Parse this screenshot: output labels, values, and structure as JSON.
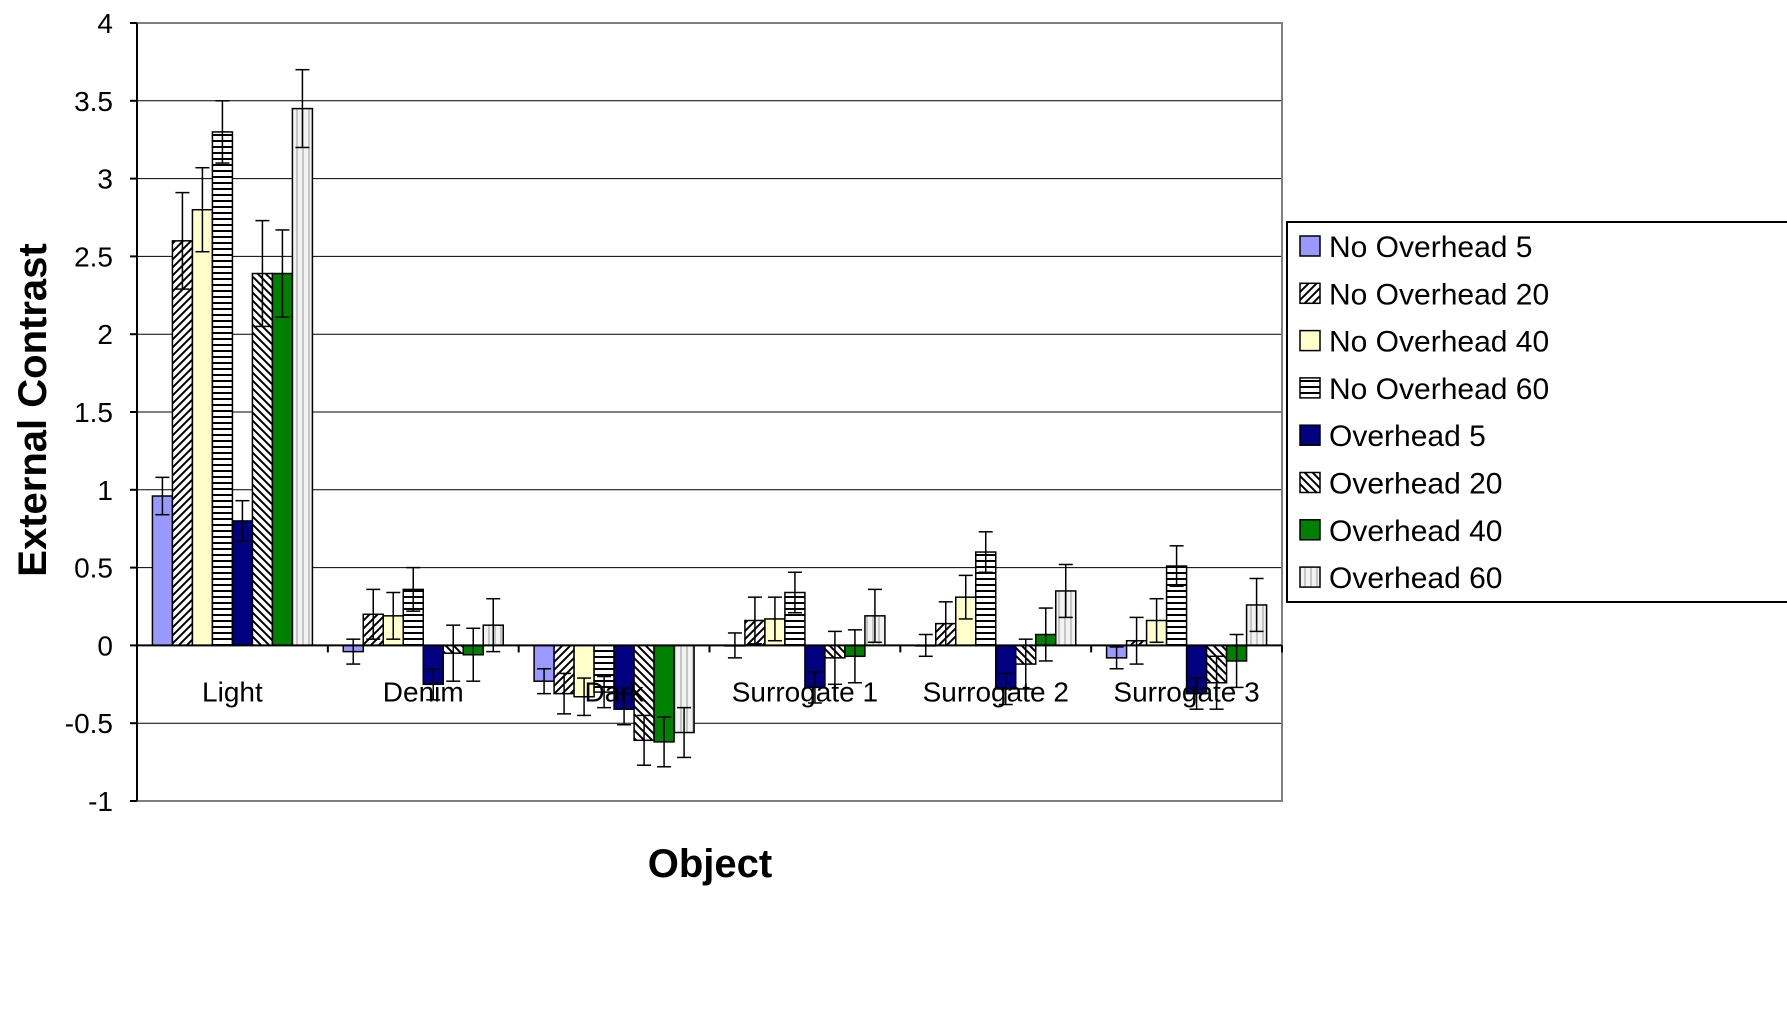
{
  "chart_data": {
    "type": "bar",
    "title": "",
    "xlabel": "Object",
    "ylabel": "External Contrast",
    "ylim": [
      -1,
      4
    ],
    "yticks": [
      "-1",
      "-0.5",
      "0",
      "0.5",
      "1",
      "1.5",
      "2",
      "2.5",
      "3",
      "3.5",
      "4"
    ],
    "grid": true,
    "legend_position": "right",
    "categories": [
      "Light",
      "Denim",
      "Dark",
      "Surrogate 1",
      "Surrogate 2",
      "Surrogate 3"
    ],
    "series": [
      {
        "name": "No Overhead 5",
        "fill": "#9999ff",
        "pattern": "solid",
        "values": [
          0.96,
          -0.04,
          -0.23,
          0.0,
          0.0,
          -0.08
        ],
        "errors": [
          0.12,
          0.08,
          0.08,
          0.08,
          0.07,
          0.07
        ]
      },
      {
        "name": "No Overhead 20",
        "fill": "#ffffff",
        "pattern": "diag-up",
        "values": [
          2.6,
          0.2,
          -0.31,
          0.16,
          0.14,
          0.03
        ],
        "errors": [
          0.31,
          0.16,
          0.13,
          0.15,
          0.14,
          0.15
        ]
      },
      {
        "name": "No Overhead 40",
        "fill": "#ffffcc",
        "pattern": "solid",
        "values": [
          2.8,
          0.19,
          -0.33,
          0.17,
          0.31,
          0.16
        ],
        "errors": [
          0.27,
          0.15,
          0.12,
          0.14,
          0.14,
          0.14
        ]
      },
      {
        "name": "No Overhead 60",
        "fill": "#ffffff",
        "pattern": "horizontal",
        "values": [
          3.3,
          0.36,
          -0.3,
          0.34,
          0.6,
          0.51
        ],
        "errors": [
          0.2,
          0.14,
          0.1,
          0.13,
          0.13,
          0.13
        ]
      },
      {
        "name": "Overhead 5",
        "fill": "#000080",
        "pattern": "solid",
        "values": [
          0.8,
          -0.25,
          -0.41,
          -0.27,
          -0.28,
          -0.31
        ],
        "errors": [
          0.13,
          0.1,
          0.1,
          0.1,
          0.1,
          0.1
        ]
      },
      {
        "name": "Overhead 20",
        "fill": "#ffffff",
        "pattern": "diag-down",
        "values": [
          2.39,
          -0.05,
          -0.61,
          -0.08,
          -0.12,
          -0.24
        ],
        "errors": [
          0.34,
          0.18,
          0.16,
          0.17,
          0.16,
          0.17
        ]
      },
      {
        "name": "Overhead 40",
        "fill": "#008000",
        "pattern": "solid",
        "values": [
          2.39,
          -0.06,
          -0.62,
          -0.07,
          0.07,
          -0.1
        ],
        "errors": [
          0.28,
          0.17,
          0.16,
          0.17,
          0.17,
          0.17
        ]
      },
      {
        "name": "Overhead 60",
        "fill": "#f2f2f2",
        "pattern": "vertical",
        "values": [
          3.45,
          0.13,
          -0.56,
          0.19,
          0.35,
          0.26
        ],
        "errors": [
          0.25,
          0.17,
          0.16,
          0.17,
          0.17,
          0.17
        ]
      }
    ]
  }
}
